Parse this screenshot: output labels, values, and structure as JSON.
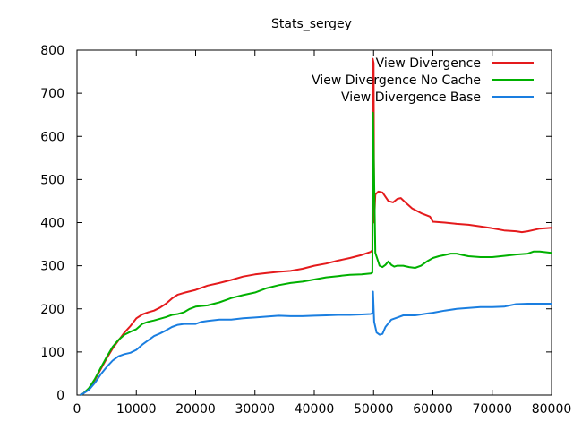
{
  "chart_data": {
    "type": "line",
    "title": "Stats_sergey",
    "xlabel": "",
    "ylabel": "",
    "xlim": [
      0,
      80000
    ],
    "ylim": [
      0,
      800
    ],
    "xticks": [
      0,
      10000,
      20000,
      30000,
      40000,
      50000,
      60000,
      70000,
      80000
    ],
    "yticks": [
      0,
      100,
      200,
      300,
      400,
      500,
      600,
      700,
      800
    ],
    "grid": false,
    "legend_position": "top-right",
    "series": [
      {
        "name": "View Divergence",
        "color": "#e41a1c",
        "points": [
          [
            500,
            0
          ],
          [
            1000,
            3
          ],
          [
            2000,
            15
          ],
          [
            3000,
            35
          ],
          [
            4000,
            60
          ],
          [
            5000,
            85
          ],
          [
            6000,
            108
          ],
          [
            7000,
            127
          ],
          [
            8000,
            145
          ],
          [
            9000,
            160
          ],
          [
            10000,
            178
          ],
          [
            11000,
            187
          ],
          [
            12000,
            192
          ],
          [
            13000,
            196
          ],
          [
            14000,
            203
          ],
          [
            15000,
            212
          ],
          [
            16000,
            224
          ],
          [
            17000,
            233
          ],
          [
            18000,
            237
          ],
          [
            20000,
            244
          ],
          [
            22000,
            254
          ],
          [
            24000,
            260
          ],
          [
            26000,
            267
          ],
          [
            28000,
            275
          ],
          [
            30000,
            280
          ],
          [
            32000,
            283
          ],
          [
            34000,
            286
          ],
          [
            36000,
            288
          ],
          [
            38000,
            293
          ],
          [
            40000,
            300
          ],
          [
            42000,
            305
          ],
          [
            44000,
            312
          ],
          [
            46000,
            318
          ],
          [
            48000,
            325
          ],
          [
            49500,
            332
          ],
          [
            49800,
            336
          ],
          [
            49850,
            780
          ],
          [
            50000,
            770
          ],
          [
            50100,
            400
          ],
          [
            50300,
            465
          ],
          [
            50800,
            472
          ],
          [
            51500,
            470
          ],
          [
            52500,
            450
          ],
          [
            53300,
            447
          ],
          [
            54000,
            455
          ],
          [
            54600,
            457
          ],
          [
            55500,
            445
          ],
          [
            56500,
            433
          ],
          [
            58000,
            422
          ],
          [
            59500,
            414
          ],
          [
            60000,
            402
          ],
          [
            62000,
            400
          ],
          [
            64000,
            397
          ],
          [
            66000,
            395
          ],
          [
            68000,
            391
          ],
          [
            70000,
            387
          ],
          [
            72000,
            382
          ],
          [
            74000,
            380
          ],
          [
            75000,
            378
          ],
          [
            76000,
            380
          ],
          [
            77000,
            383
          ],
          [
            78000,
            386
          ],
          [
            80000,
            388
          ]
        ]
      },
      {
        "name": "View Divergence No Cache",
        "color": "#00b000",
        "points": [
          [
            500,
            0
          ],
          [
            1000,
            3
          ],
          [
            2000,
            16
          ],
          [
            3000,
            37
          ],
          [
            4000,
            63
          ],
          [
            5000,
            88
          ],
          [
            6000,
            112
          ],
          [
            7000,
            128
          ],
          [
            8000,
            140
          ],
          [
            9000,
            147
          ],
          [
            10000,
            153
          ],
          [
            11000,
            165
          ],
          [
            12000,
            170
          ],
          [
            13000,
            173
          ],
          [
            14000,
            177
          ],
          [
            15000,
            181
          ],
          [
            16000,
            186
          ],
          [
            17000,
            188
          ],
          [
            18000,
            192
          ],
          [
            19000,
            200
          ],
          [
            20000,
            205
          ],
          [
            22000,
            208
          ],
          [
            24000,
            215
          ],
          [
            26000,
            225
          ],
          [
            28000,
            232
          ],
          [
            30000,
            238
          ],
          [
            32000,
            248
          ],
          [
            34000,
            255
          ],
          [
            36000,
            260
          ],
          [
            38000,
            263
          ],
          [
            40000,
            268
          ],
          [
            42000,
            273
          ],
          [
            44000,
            276
          ],
          [
            46000,
            279
          ],
          [
            48000,
            280
          ],
          [
            49500,
            282
          ],
          [
            49800,
            284
          ],
          [
            49900,
            655
          ],
          [
            50100,
            500
          ],
          [
            50300,
            330
          ],
          [
            51000,
            300
          ],
          [
            51500,
            297
          ],
          [
            52000,
            302
          ],
          [
            52500,
            310
          ],
          [
            53000,
            302
          ],
          [
            53500,
            298
          ],
          [
            54000,
            300
          ],
          [
            55000,
            300
          ],
          [
            56000,
            297
          ],
          [
            57000,
            295
          ],
          [
            58000,
            300
          ],
          [
            59000,
            310
          ],
          [
            60000,
            318
          ],
          [
            61000,
            322
          ],
          [
            62000,
            325
          ],
          [
            63000,
            328
          ],
          [
            64000,
            328
          ],
          [
            65000,
            325
          ],
          [
            66000,
            322
          ],
          [
            68000,
            320
          ],
          [
            70000,
            320
          ],
          [
            72000,
            323
          ],
          [
            74000,
            326
          ],
          [
            76000,
            328
          ],
          [
            77000,
            333
          ],
          [
            78000,
            333
          ],
          [
            80000,
            330
          ]
        ]
      },
      {
        "name": "View Divergence Base",
        "color": "#1a7ee0",
        "points": [
          [
            500,
            0
          ],
          [
            1000,
            3
          ],
          [
            2000,
            12
          ],
          [
            3000,
            28
          ],
          [
            4000,
            48
          ],
          [
            5000,
            65
          ],
          [
            6000,
            80
          ],
          [
            7000,
            90
          ],
          [
            8000,
            95
          ],
          [
            9000,
            98
          ],
          [
            10000,
            105
          ],
          [
            11000,
            117
          ],
          [
            12000,
            127
          ],
          [
            13000,
            137
          ],
          [
            14000,
            143
          ],
          [
            15000,
            150
          ],
          [
            16000,
            158
          ],
          [
            17000,
            163
          ],
          [
            18000,
            165
          ],
          [
            20000,
            165
          ],
          [
            21000,
            170
          ],
          [
            22000,
            172
          ],
          [
            24000,
            175
          ],
          [
            26000,
            175
          ],
          [
            28000,
            178
          ],
          [
            30000,
            180
          ],
          [
            32000,
            182
          ],
          [
            34000,
            184
          ],
          [
            36000,
            183
          ],
          [
            38000,
            183
          ],
          [
            40000,
            184
          ],
          [
            42000,
            185
          ],
          [
            44000,
            186
          ],
          [
            46000,
            186
          ],
          [
            48000,
            187
          ],
          [
            49500,
            188
          ],
          [
            49800,
            190
          ],
          [
            49900,
            240
          ],
          [
            50100,
            170
          ],
          [
            50500,
            145
          ],
          [
            51000,
            140
          ],
          [
            51500,
            142
          ],
          [
            52000,
            158
          ],
          [
            53000,
            175
          ],
          [
            54000,
            180
          ],
          [
            55000,
            185
          ],
          [
            57000,
            185
          ],
          [
            58000,
            187
          ],
          [
            59000,
            189
          ],
          [
            60000,
            191
          ],
          [
            62000,
            196
          ],
          [
            64000,
            200
          ],
          [
            66000,
            202
          ],
          [
            68000,
            204
          ],
          [
            70000,
            204
          ],
          [
            72000,
            205
          ],
          [
            73000,
            208
          ],
          [
            74000,
            211
          ],
          [
            76000,
            212
          ],
          [
            78000,
            212
          ],
          [
            80000,
            212
          ]
        ]
      }
    ]
  }
}
